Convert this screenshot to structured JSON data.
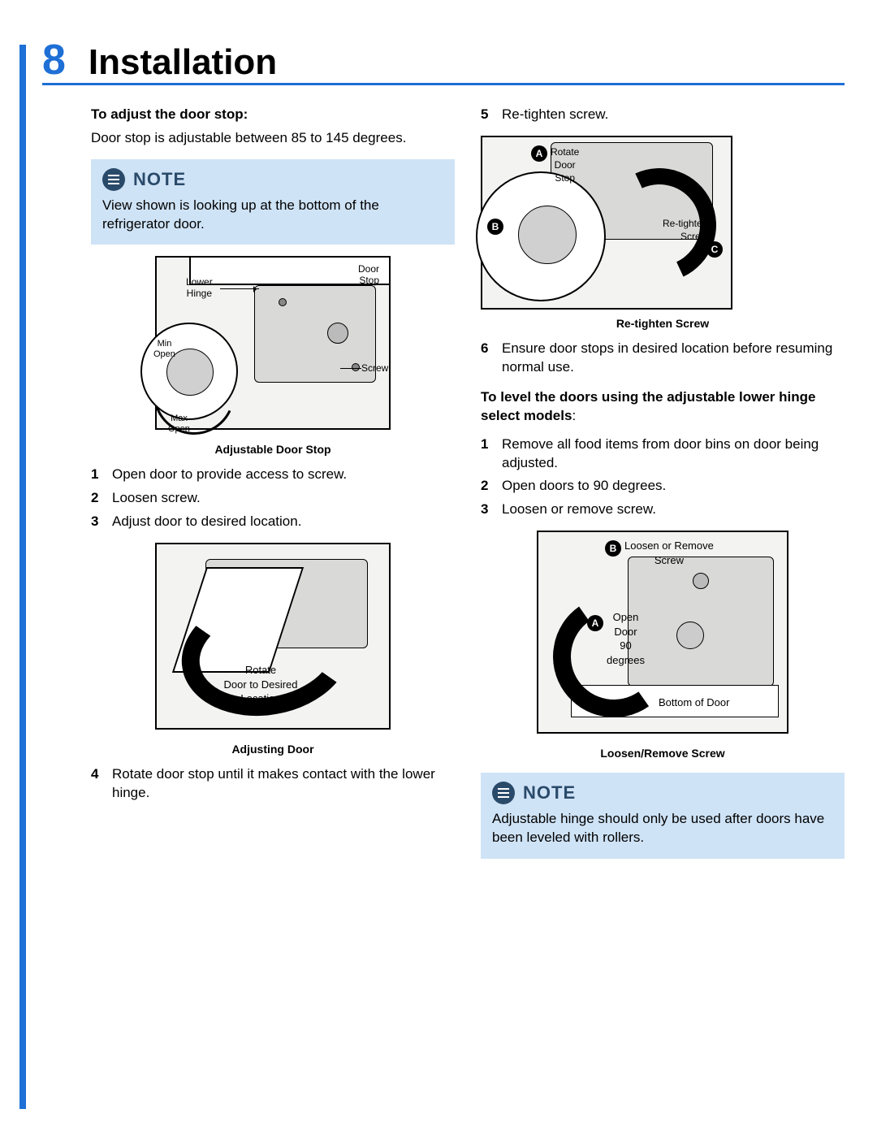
{
  "page": {
    "number": "8",
    "title": "Installation"
  },
  "left": {
    "heading1": "To adjust the door stop:",
    "para1": "Door stop is adjustable between 85 to 145 degrees.",
    "note1_title": "NOTE",
    "note1_text": "View shown is looking up at the bottom of the refrigerator door.",
    "fig1": {
      "caption": "Adjustable Door Stop",
      "label_lower_hinge": "Lower\nHinge",
      "label_door_stop": "Door\nStop",
      "label_screw": "Screw",
      "label_min": "Min\nOpen",
      "label_max": "Max\nOpen"
    },
    "steps1": [
      {
        "n": "1",
        "t": "Open door to provide access to screw."
      },
      {
        "n": "2",
        "t": "Loosen screw."
      },
      {
        "n": "3",
        "t": "Adjust door to desired location."
      }
    ],
    "fig2": {
      "caption": "Adjusting Door",
      "label_rotate": "Rotate\nDoor to Desired\nLocation"
    },
    "steps2": [
      {
        "n": "4",
        "t": "Rotate door stop until it makes contact with the lower hinge."
      }
    ]
  },
  "right": {
    "steps3": [
      {
        "n": "5",
        "t": "Re-tighten screw."
      }
    ],
    "fig3": {
      "caption": "Re-tighten Screw",
      "label_A": "Rotate\nDoor\nStop",
      "label_C": "Re-tighten\nScrew",
      "badge_A": "A",
      "badge_B": "B",
      "badge_C": "C"
    },
    "steps4": [
      {
        "n": "6",
        "t": "Ensure door stops in desired location before resuming normal use."
      }
    ],
    "heading2": "To level the doors using the adjustable lower hinge select models",
    "heading2_suffix": ":",
    "steps5": [
      {
        "n": "1",
        "t": "Remove all food items from door bins on door being adjusted."
      },
      {
        "n": "2",
        "t": "Open doors to 90 degrees."
      },
      {
        "n": "3",
        "t": "Loosen or remove screw."
      }
    ],
    "fig4": {
      "caption": "Loosen/Remove Screw",
      "label_B": "Loosen or Remove\nScrew",
      "label_A": "Open\nDoor\n90\ndegrees",
      "label_bottom": "Bottom of Door",
      "badge_A": "A",
      "badge_B": "B"
    },
    "note2_title": "NOTE",
    "note2_text": "Adjustable hinge should only be used after doors have been leveled with rollers."
  },
  "colors": {
    "accent": "#1e6fd6",
    "note_bg": "#cfe3f6",
    "note_fg": "#2a4a6a"
  }
}
